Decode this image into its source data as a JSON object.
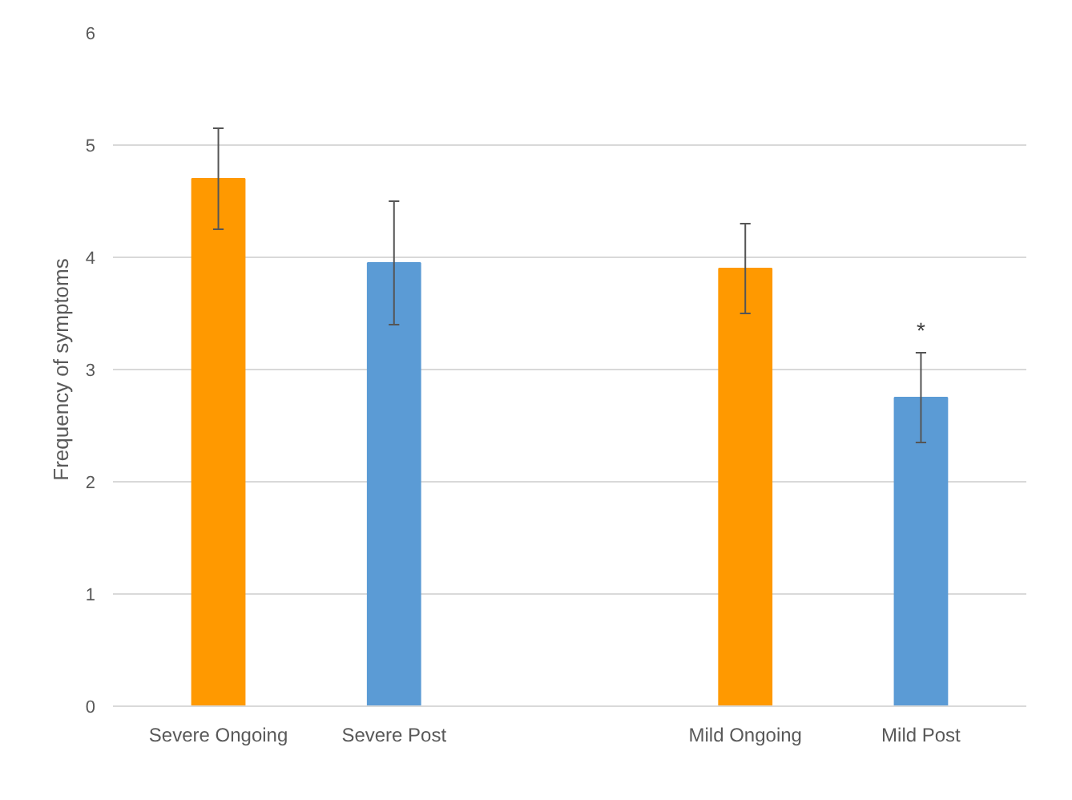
{
  "chart_data": {
    "type": "bar",
    "ylabel": "Frequency of symptoms",
    "categories": [
      "Severe Ongoing",
      "Severe Post",
      null,
      "Mild Ongoing",
      "Mild Post"
    ],
    "values": [
      4.7,
      3.95,
      null,
      3.9,
      2.75
    ],
    "errors": [
      0.45,
      0.55,
      null,
      0.4,
      0.4
    ],
    "colors": [
      "#ff9900",
      "#5b9bd5",
      "#5b9bd5",
      "#ff9900",
      "#5b9bd5"
    ],
    "ylim": [
      0,
      6
    ],
    "yticks": [
      0,
      1,
      2,
      3,
      4,
      5,
      6
    ],
    "grid": "y",
    "annotations": [
      {
        "text": "*",
        "x": "Mild Post",
        "y": 3.15
      }
    ]
  }
}
